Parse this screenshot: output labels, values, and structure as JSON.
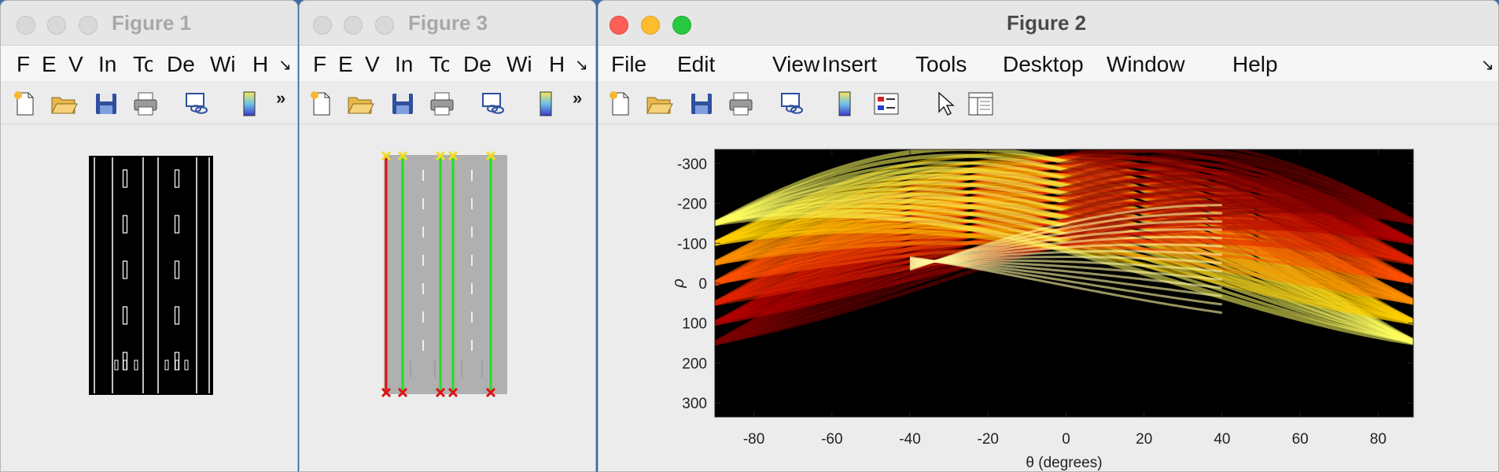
{
  "windows": {
    "figure1": {
      "title": "Figure 1",
      "menu": [
        "F",
        "E",
        "V",
        "In",
        "To",
        "De",
        "Wi",
        "H"
      ],
      "menu_overflow": "↘"
    },
    "figure3": {
      "title": "Figure 3",
      "menu": [
        "F",
        "E",
        "V",
        "In",
        "To",
        "De",
        "Wi",
        "H"
      ],
      "menu_overflow": "↘"
    },
    "figure2": {
      "title": "Figure 2",
      "menu": [
        "File",
        "Edit",
        "View",
        "Insert",
        "Tools",
        "Desktop",
        "Window",
        "Help"
      ],
      "menu_overflow": "↘"
    }
  },
  "toolbar": {
    "overflow": "»",
    "icons": [
      "new-figure-icon",
      "open-file-icon",
      "save-icon",
      "print-icon",
      "link-plot-icon",
      "colorbar-icon",
      "legend-icon",
      "edit-plot-cursor-icon",
      "property-inspector-icon"
    ]
  },
  "chart_data": {
    "type": "heatmap",
    "title": "",
    "xlabel": "θ (degrees)",
    "ylabel": "ρ",
    "xlim": [
      -90,
      89
    ],
    "ylim": [
      -335,
      335
    ],
    "y_reversed": true,
    "colormap": "hot",
    "xticks": [
      -80,
      -60,
      -40,
      -20,
      0,
      20,
      40,
      60,
      80
    ],
    "yticks": [
      -300,
      -200,
      -100,
      0,
      100,
      200,
      300
    ],
    "grid": false
  },
  "colors": {
    "lane_background": "#000000",
    "road_gray": "#b0b0b0",
    "line_red": "#e01010",
    "line_green": "#22dd22",
    "marker_yellow": "#f0e020",
    "marker_red": "#e01010"
  }
}
